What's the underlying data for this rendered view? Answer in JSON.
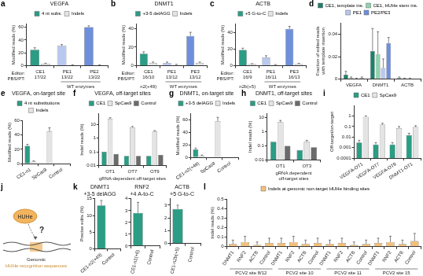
{
  "chart_data": [
    {
      "panel": "a",
      "type": "bar",
      "title": "VEGFA",
      "y_label": "Modified reads (%)",
      "categories": [
        "CE1",
        "PE1",
        "PE2"
      ],
      "sub_labels": [
        "17/22",
        "13/22",
        "13/22"
      ],
      "row_labels": [
        "Editor:",
        "PBS/PT:"
      ],
      "annotations": [
        "WT enzymes"
      ],
      "series": [
        {
          "name": "4 nt subs.",
          "colors": [
            "#2a9d84",
            "#b9c8ef",
            "#6f8fdc"
          ],
          "values": [
            25,
            31,
            60
          ],
          "errors": [
            3,
            2,
            2
          ]
        },
        {
          "name": "Indels",
          "color": "#e4e4e4",
          "values": [
            3,
            1,
            1
          ],
          "errors": [
            1,
            0.5,
            0.5
          ]
        }
      ],
      "ylim": [
        0,
        65
      ],
      "yticks": [
        0,
        20,
        40,
        60
      ],
      "grid": false,
      "legend": "top"
    },
    {
      "panel": "b",
      "type": "bar",
      "title": "DNMT1",
      "y_label": "Modified reads (%)",
      "x_label": "n2(+49)",
      "categories": [
        "CE1",
        "PE1",
        "PE3"
      ],
      "sub_labels": [
        "16/10",
        "13/12",
        "13/12"
      ],
      "row_labels": [
        "Editor:",
        "PBS/PT:"
      ],
      "annotations": [
        "WT enzymes"
      ],
      "series": [
        {
          "name": "+3-5 delAGG",
          "colors": [
            "#2a9d84",
            "#b9c8ef",
            "#6f8fdc"
          ],
          "values": [
            13,
            3,
            32
          ],
          "errors": [
            2,
            1,
            4
          ]
        },
        {
          "name": "Indels",
          "color": "#e4e4e4",
          "values": [
            3,
            1,
            3
          ],
          "errors": [
            1,
            0.5,
            1
          ]
        }
      ],
      "ylim": [
        0,
        45
      ],
      "yticks": [
        0,
        20,
        40
      ],
      "grid": false,
      "legend": "top"
    },
    {
      "panel": "c",
      "type": "bar",
      "title": "ACTB",
      "y_label": "Modified reads (%)",
      "x_label": "n2b(+5)",
      "categories": [
        "CE1",
        "PE1",
        "PE3"
      ],
      "sub_labels": [
        "16/9",
        "16/11",
        "16/13"
      ],
      "row_labels": [
        "Editor:",
        "PBS/PT:"
      ],
      "annotations": [
        "WT enzymes"
      ],
      "series": [
        {
          "name": "+5 G-to-C",
          "colors": [
            "#2a9d84",
            "#b9c8ef",
            "#6f8fdc"
          ],
          "values": [
            19,
            10,
            44
          ],
          "errors": [
            2,
            2,
            3
          ]
        },
        {
          "name": "Indels",
          "color": "#e4e4e4",
          "values": [
            2,
            1,
            2
          ],
          "errors": [
            0.5,
            0.5,
            1
          ]
        }
      ],
      "ylim": [
        0,
        50
      ],
      "yticks": [
        0,
        20,
        40
      ],
      "grid": false,
      "legend": "top"
    },
    {
      "panel": "d",
      "type": "bar",
      "y_label": [
        "Fraction of edited reads",
        "with template insertion"
      ],
      "categories": [
        "VEGFA",
        "DNMT1",
        "ACTB"
      ],
      "series": [
        {
          "name": "CE1, template ins.",
          "color": "#1f7f6a",
          "values": [
            0.004,
            0.025,
            0.001
          ],
          "errors": [
            0.003,
            0.02,
            0.001
          ]
        },
        {
          "name": "CE1, HUHe stem ins.",
          "color": "#8fd3b0",
          "values": [
            0.001,
            0.022,
            0.0005
          ],
          "errors": [
            0.001,
            0.02,
            0.0005
          ]
        },
        {
          "name": "PE1",
          "color": "#b9c8ef",
          "values": [
            0.0005,
            0.01,
            0.0005
          ],
          "errors": [
            0.0005,
            0.008,
            0.0005
          ]
        },
        {
          "name": "PE2/PE3",
          "color": "#6f8fdc",
          "values": [
            0.001,
            0.032,
            0
          ],
          "errors": [
            0.001,
            0.005,
            0
          ]
        }
      ],
      "ylim": [
        0,
        0.05
      ],
      "yticks": [
        0,
        0.02,
        0.04
      ],
      "grid": false,
      "legend": "top"
    },
    {
      "panel": "e",
      "type": "bar",
      "title": "VEGFA, on-target site",
      "y_label": "Modified reads (%)",
      "categories": [
        "CE1-n1",
        "SpCas9",
        "Control"
      ],
      "series": [
        {
          "name": "4 nt substitutions",
          "color": "#2a9d84",
          "values": [
            25,
            0,
            0
          ],
          "errors": [
            2,
            0,
            0
          ]
        },
        {
          "name": "Indels",
          "color": "#e4e4e4",
          "values": [
            3,
            45,
            0
          ],
          "errors": [
            1,
            5,
            0
          ]
        }
      ],
      "ylim": [
        0,
        60
      ],
      "yticks": [
        0,
        20,
        40,
        60
      ],
      "grid": false,
      "legend": "top"
    },
    {
      "panel": "f",
      "type": "bar",
      "title": "VEGFA, off-target sites",
      "y_label": "Indel reads (%)",
      "x_label": "gRNA-dependent off-target sites",
      "log": true,
      "categories": [
        "OT1",
        "OT7",
        "OT9"
      ],
      "series": [
        {
          "name": "CE1",
          "color": "#2a9d84",
          "values": [
            0.1,
            0.05,
            0.05
          ]
        },
        {
          "name": "SpCas9",
          "color": "#e4e4e4",
          "values": [
            25,
            6,
            3
          ],
          "errors": [
            5,
            1,
            0.5
          ]
        },
        {
          "name": "Control",
          "color": "#6b6b6b",
          "values": [
            0.07,
            0.05,
            0.06
          ]
        }
      ],
      "ylim": [
        0.01,
        60
      ],
      "yticks": [
        0.01,
        0.1,
        1,
        10
      ],
      "grid": false,
      "legend": "top"
    },
    {
      "panel": "g",
      "type": "bar",
      "title": "DNMT1, on-target site",
      "y_label": "Modified reads (%)",
      "categories": [
        "CE1-n2(+49)",
        "SpCas9",
        "Control"
      ],
      "series": [
        {
          "name": "+3-5 delAGG",
          "color": "#2a9d84",
          "values": [
            13,
            0,
            0
          ],
          "errors": [
            2,
            0,
            0
          ]
        },
        {
          "name": "Indels",
          "color": "#e4e4e4",
          "values": [
            3,
            58,
            0
          ],
          "errors": [
            1,
            6,
            0
          ]
        }
      ],
      "ylim": [
        0,
        70
      ],
      "yticks": [
        0,
        20,
        40,
        60
      ],
      "grid": false,
      "legend": "top"
    },
    {
      "panel": "h",
      "type": "bar",
      "title": "DNMT1, off-target sites",
      "y_label": "Indel reads (%)",
      "x_label": [
        "gRNA dependent",
        "off-target sites"
      ],
      "log": true,
      "categories": [
        "OT1",
        "OT3"
      ],
      "series": [
        {
          "name": "CE1",
          "color": "#2a9d84",
          "values": [
            0.2,
            0.05
          ]
        },
        {
          "name": "SpCas9",
          "color": "#e4e4e4",
          "values": [
            5,
            0.2
          ],
          "errors": [
            1.5,
            0.05
          ]
        },
        {
          "name": "Control",
          "color": "#6b6b6b",
          "values": [
            0.1,
            0.08
          ]
        }
      ],
      "ylim": [
        0.01,
        20
      ],
      "yticks": [
        0.01,
        0.1,
        1,
        10
      ],
      "grid": false,
      "legend": "top"
    },
    {
      "panel": "i",
      "type": "bar",
      "y_label": "Off-target/on-target",
      "log": true,
      "categories": [
        "VEGFA-OT1",
        "VEGFA-OT7",
        "VEGFA-OT9",
        "DNMT1-OT1"
      ],
      "series": [
        {
          "name": "CE1",
          "color": "#2a9d84",
          "values": [
            0.003,
            0.002,
            0.002,
            0.015
          ],
          "errors": [
            0.002,
            0.001,
            0.001,
            0.008
          ]
        },
        {
          "name": "SpCas9",
          "color": "#e4e4e4",
          "values": [
            0.8,
            0.15,
            0.07,
            0.09
          ],
          "errors": [
            0.2,
            0.05,
            0.03,
            0.03
          ]
        }
      ],
      "ylim": [
        0.0001,
        10
      ],
      "yticks": [
        0.0001,
        0.001,
        0.01,
        0.1,
        1
      ],
      "grid": false,
      "legend": "top"
    },
    {
      "panel": "k",
      "type": "bar",
      "title": [
        "DNMT1",
        "+3-5 delAGG"
      ],
      "y_label": "Precise edits (%)",
      "categories": [
        "CE1-n2(+49)",
        "Control"
      ],
      "color": "#2a9d84",
      "values": [
        13,
        0
      ],
      "errors": [
        1.5,
        0
      ],
      "ylim": [
        0,
        15
      ],
      "yticks": [
        0,
        5,
        10,
        15
      ],
      "grid": false
    },
    {
      "type": "bar",
      "title": [
        "RNF2",
        "+4 A-to-C"
      ],
      "categories": [
        "CE1-n1(+6)",
        "Control"
      ],
      "color": "#2a9d84",
      "values": [
        2.8,
        0
      ],
      "errors": [
        0.9,
        0
      ],
      "ylim": [
        0,
        4
      ],
      "yticks": [
        0,
        1,
        2,
        3,
        4
      ],
      "grid": false
    },
    {
      "type": "bar",
      "title": [
        "ACTB",
        "+5 G-to-C"
      ],
      "categories": [
        "CE1-n2b(+5)",
        "Control"
      ],
      "color": "#2a9d84",
      "values": [
        2.7,
        0
      ],
      "errors": [
        0.3,
        0
      ],
      "ylim": [
        0,
        3.5
      ],
      "yticks": [
        0,
        1,
        2,
        3
      ],
      "grid": false
    },
    {
      "panel": "l",
      "type": "bar",
      "y_label": "Indel reads (%)",
      "categories": [
        "DNMT1",
        "RNF2",
        "ACTB",
        "Control",
        "DNMT1",
        "RNF2",
        "ACTB",
        "Control",
        "DNMT1",
        "RNF2",
        "ACTB",
        "Control",
        "DNMT1",
        "RNF2",
        "ACTB",
        "Control"
      ],
      "groups": [
        {
          "name": "PCV2 site 8/12",
          "count": 4
        },
        {
          "name": "PCV2 site 10",
          "count": 4
        },
        {
          "name": "PCV2 site 11",
          "count": 4
        },
        {
          "name": "PCV2 site 15",
          "count": 4
        }
      ],
      "series": [
        {
          "name": "Indels at genomic non-target HUHe binding sites",
          "color": "#f3c07a",
          "values": [
            0.03,
            0.05,
            0.02,
            0.04,
            0.04,
            0.05,
            0.03,
            0.04,
            0.03,
            0.04,
            0.02,
            0.03,
            0.04,
            0.05,
            0.03,
            0.06
          ],
          "errors": [
            0.04,
            0.06,
            0.03,
            0.05,
            0.05,
            0.06,
            0.04,
            0.05,
            0.04,
            0.05,
            0.03,
            0.04,
            0.05,
            0.06,
            0.04,
            0.08
          ]
        }
      ],
      "ylim": [
        0,
        0.5
      ],
      "yticks": [
        0,
        0.1,
        0.2,
        0.3,
        0.4,
        0.5
      ],
      "grid": false,
      "legend": "top"
    }
  ],
  "diagram": {
    "panel": "j",
    "enzyme_label": "HUHe",
    "question_mark": "?",
    "caption": [
      "Genomic",
      "HUHe recognition sequences"
    ]
  }
}
